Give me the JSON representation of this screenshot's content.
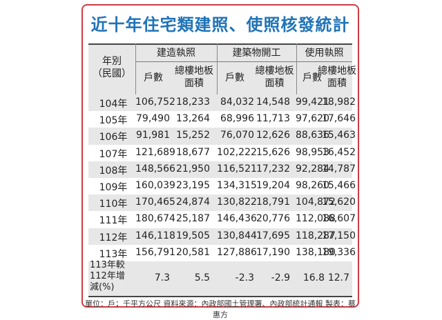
{
  "title": "近十年住宅類建照、使照核發統計",
  "headers": {
    "year_col": "年別\n（民國）",
    "groups": [
      "建造執照",
      "建築物開工",
      "使用執照"
    ],
    "sub": [
      "戶數",
      "總樓地板\n面積",
      "戶數",
      "總樓地板\n面積",
      "戶數",
      "總樓地板\n面積"
    ]
  },
  "rows": [
    {
      "year": "104年",
      "values": [
        "106,752",
        "18,233",
        "84,032",
        "14,548",
        "99,421",
        "18,982"
      ]
    },
    {
      "year": "105年",
      "values": [
        "79,490",
        "13,264",
        "68,996",
        "11,713",
        "97,620",
        "17,646"
      ]
    },
    {
      "year": "106年",
      "values": [
        "91,981",
        "15,252",
        "76,070",
        "12,626",
        "88,636",
        "15,463"
      ]
    },
    {
      "year": "107年",
      "values": [
        "121,689",
        "18,677",
        "102,222",
        "15,626",
        "98,953",
        "16,452"
      ]
    },
    {
      "year": "108年",
      "values": [
        "148,566",
        "21,950",
        "116,521",
        "17,232",
        "92,284",
        "14,787"
      ]
    },
    {
      "year": "109年",
      "values": [
        "160,039",
        "23,195",
        "134,315",
        "19,204",
        "98,260",
        "15,466"
      ]
    },
    {
      "year": "110年",
      "values": [
        "170,465",
        "24,874",
        "130,822",
        "18,791",
        "104,872",
        "15,620"
      ]
    },
    {
      "year": "111年",
      "values": [
        "180,674",
        "25,187",
        "146,436",
        "20,776",
        "112,088",
        "16,607"
      ]
    },
    {
      "year": "112年",
      "values": [
        "146,118",
        "19,505",
        "130,844",
        "17,695",
        "118,287",
        "17,150"
      ]
    },
    {
      "year": "113年",
      "values": [
        "156,791",
        "20,581",
        "127,886",
        "17,190",
        "138,180",
        "19,336"
      ]
    }
  ],
  "compare_row": {
    "label": "113年較\n112年增\n減(%)",
    "values": [
      "7.3",
      "5.5",
      "-2.3",
      "-2.9",
      "16.8",
      "12.7"
    ]
  },
  "footnote": "單位：戶；千平方公尺 資料來源：內政部國土管理署、內政部統計通報 製表：蔡惠方",
  "colors": {
    "title": "#1f73b8",
    "border": "#cf3b40",
    "band": "#e7e7e7"
  }
}
